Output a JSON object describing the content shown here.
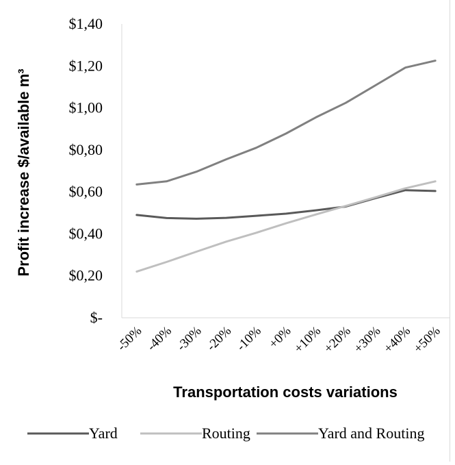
{
  "chart_data": {
    "type": "line",
    "title": "",
    "xlabel": "Transportation costs variations",
    "ylabel": "Profit increase $/available m³",
    "categories": [
      "-50%",
      "-40%",
      "-30%",
      "-20%",
      "-10%",
      "+0%",
      "+10%",
      "+20%",
      "+30%",
      "+40%",
      "+50%"
    ],
    "y_tick_labels": [
      "$-",
      "$0,20",
      "$0,40",
      "$0,60",
      "$0,80",
      "$1,00",
      "$1,20",
      "$1,40"
    ],
    "ylim": [
      0,
      1.4
    ],
    "grid": false,
    "legend_position": "bottom",
    "series": [
      {
        "name": "Yard",
        "color": "#595959",
        "values": [
          0.49,
          0.475,
          0.472,
          0.476,
          0.486,
          0.496,
          0.512,
          0.53,
          0.57,
          0.608,
          0.604
        ]
      },
      {
        "name": "Routing",
        "color": "#bfbfbf",
        "values": [
          0.22,
          0.266,
          0.315,
          0.363,
          0.405,
          0.45,
          0.492,
          0.533,
          0.574,
          0.617,
          0.65
        ]
      },
      {
        "name": "Yard and Routing",
        "color": "#808080",
        "values": [
          0.635,
          0.65,
          0.696,
          0.755,
          0.81,
          0.878,
          0.955,
          1.024,
          1.108,
          1.192,
          1.225
        ]
      }
    ]
  }
}
